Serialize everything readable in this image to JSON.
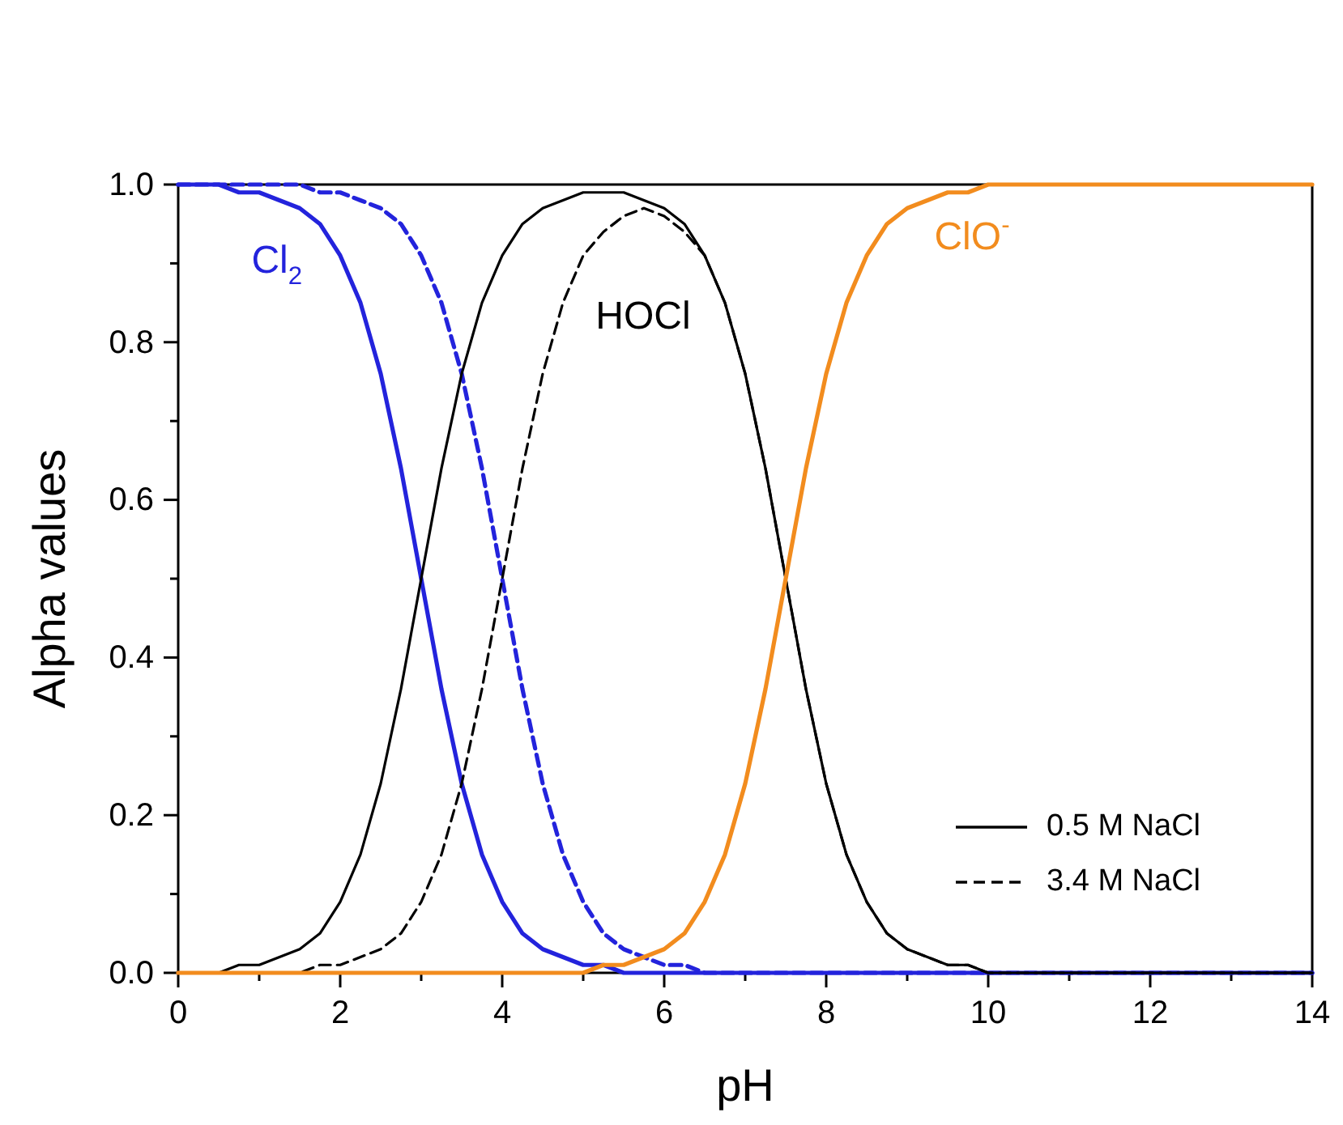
{
  "chart_data": {
    "type": "line",
    "xlabel": "pH",
    "ylabel": "Alpha values",
    "x": [
      0,
      0.25,
      0.5,
      0.75,
      1,
      1.25,
      1.5,
      1.75,
      2,
      2.25,
      2.5,
      2.75,
      3,
      3.25,
      3.5,
      3.75,
      4,
      4.25,
      4.5,
      4.75,
      5,
      5.25,
      5.5,
      5.75,
      6,
      6.25,
      6.5,
      6.75,
      7,
      7.25,
      7.5,
      7.75,
      8,
      8.25,
      8.5,
      8.75,
      9,
      9.25,
      9.5,
      9.75,
      10,
      10.25,
      10.5,
      10.75,
      11,
      12,
      13,
      14
    ],
    "series": [
      {
        "color": "#2323dc",
        "line_style": "solid",
        "values": [
          1.0,
          1.0,
          1.0,
          0.99,
          0.99,
          0.98,
          0.97,
          0.95,
          0.91,
          0.85,
          0.76,
          0.64,
          0.5,
          0.36,
          0.24,
          0.15,
          0.09,
          0.05,
          0.03,
          0.02,
          0.01,
          0.01,
          0.0,
          0.0,
          0.0,
          0.0,
          0.0,
          0.0,
          0.0,
          0.0,
          0.0,
          0.0,
          0.0,
          0.0,
          0.0,
          0.0,
          0.0,
          0.0,
          0.0,
          0.0,
          0.0,
          0.0,
          0.0,
          0.0,
          0.0,
          0.0,
          0.0,
          0.0
        ]
      },
      {
        "color": "#2323dc",
        "line_style": "dashed",
        "values": [
          1.0,
          1.0,
          1.0,
          1.0,
          1.0,
          1.0,
          1.0,
          0.99,
          0.99,
          0.98,
          0.97,
          0.95,
          0.91,
          0.85,
          0.76,
          0.64,
          0.5,
          0.36,
          0.24,
          0.15,
          0.09,
          0.05,
          0.03,
          0.02,
          0.01,
          0.01,
          0.0,
          0.0,
          0.0,
          0.0,
          0.0,
          0.0,
          0.0,
          0.0,
          0.0,
          0.0,
          0.0,
          0.0,
          0.0,
          0.0,
          0.0,
          0.0,
          0.0,
          0.0,
          0.0,
          0.0,
          0.0,
          0.0
        ]
      },
      {
        "name": "0.5 M NaCl",
        "color": "#000000",
        "line_style": "solid",
        "values": [
          0.0,
          0.0,
          0.0,
          0.01,
          0.01,
          0.02,
          0.03,
          0.05,
          0.09,
          0.15,
          0.24,
          0.36,
          0.5,
          0.64,
          0.76,
          0.85,
          0.91,
          0.95,
          0.97,
          0.98,
          0.99,
          0.99,
          0.99,
          0.98,
          0.97,
          0.95,
          0.91,
          0.85,
          0.76,
          0.64,
          0.5,
          0.36,
          0.24,
          0.15,
          0.09,
          0.05,
          0.03,
          0.02,
          0.01,
          0.01,
          0.0,
          0.0,
          0.0,
          0.0,
          0.0,
          0.0,
          0.0,
          0.0
        ]
      },
      {
        "name": "3.4 M NaCl",
        "color": "#000000",
        "line_style": "dashed",
        "values": [
          0.0,
          0.0,
          0.0,
          0.0,
          0.0,
          0.0,
          0.0,
          0.01,
          0.01,
          0.02,
          0.03,
          0.05,
          0.09,
          0.15,
          0.24,
          0.36,
          0.5,
          0.64,
          0.76,
          0.85,
          0.91,
          0.94,
          0.96,
          0.97,
          0.96,
          0.94,
          0.91,
          0.85,
          0.76,
          0.64,
          0.5,
          0.36,
          0.24,
          0.15,
          0.09,
          0.05,
          0.03,
          0.02,
          0.01,
          0.01,
          0.0,
          0.0,
          0.0,
          0.0,
          0.0,
          0.0,
          0.0,
          0.0
        ]
      },
      {
        "color": "#f28c1e",
        "line_style": "solid",
        "values": [
          0.0,
          0.0,
          0.0,
          0.0,
          0.0,
          0.0,
          0.0,
          0.0,
          0.0,
          0.0,
          0.0,
          0.0,
          0.0,
          0.0,
          0.0,
          0.0,
          0.0,
          0.0,
          0.0,
          0.0,
          0.0,
          0.01,
          0.01,
          0.02,
          0.03,
          0.05,
          0.09,
          0.15,
          0.24,
          0.36,
          0.5,
          0.64,
          0.76,
          0.85,
          0.91,
          0.95,
          0.97,
          0.98,
          0.99,
          0.99,
          1.0,
          1.0,
          1.0,
          1.0,
          1.0,
          1.0,
          1.0,
          1.0
        ]
      }
    ],
    "annotations": [
      "Cl$_{2}$",
      "HOCl",
      "ClO$^{-}$"
    ],
    "xlim": [
      0,
      14
    ],
    "xticks": [
      0,
      {
        "value": 1,
        "label": null
      },
      2,
      {
        "value": 3,
        "label": null
      },
      4,
      {
        "value": 5,
        "label": null
      },
      6,
      {
        "value": 7,
        "label": null
      },
      8,
      {
        "value": 9,
        "label": null
      },
      10,
      {
        "value": 11,
        "label": null
      },
      12,
      {
        "value": 13,
        "label": null
      },
      14
    ],
    "ylim": [
      0,
      1
    ],
    "yticks": [
      {
        "value": 0,
        "label": "0.0"
      },
      {
        "value": 0.1,
        "label": null
      },
      {
        "value": 0.2,
        "label": "0.2"
      },
      {
        "value": 0.3,
        "label": null
      },
      {
        "value": 0.4,
        "label": "0.4"
      },
      {
        "value": 0.5,
        "label": null
      },
      {
        "value": 0.6,
        "label": "0.6"
      },
      {
        "value": 0.7,
        "label": null
      },
      {
        "value": 0.8,
        "label": "0.8"
      },
      {
        "value": 0.9,
        "label": null
      },
      {
        "value": 1,
        "label": "1.0"
      }
    ],
    "grid": false,
    "legend": "bottom right"
  }
}
